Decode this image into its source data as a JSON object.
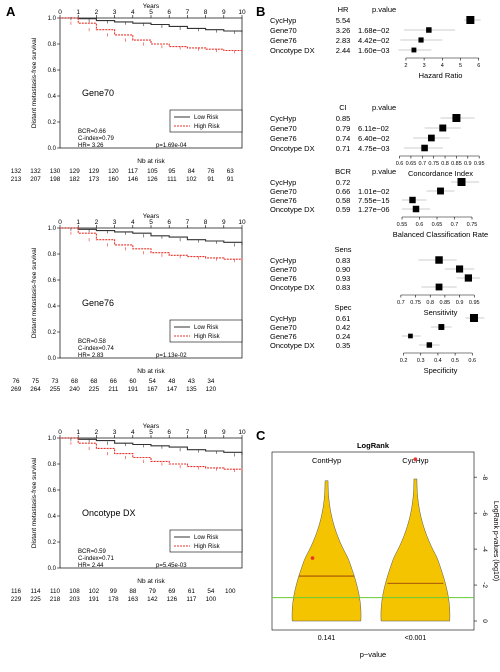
{
  "panel_labels": {
    "a": "A",
    "b": "B",
    "c": "C"
  },
  "km": {
    "years_label": "Years",
    "x_ticks": [
      "0",
      "1",
      "2",
      "3",
      "4",
      "5",
      "6",
      "7",
      "8",
      "9",
      "10"
    ],
    "ylabel": "Distant metastasis-free survival",
    "y_ticks": [
      "0.0",
      "0.2",
      "0.4",
      "0.6",
      "0.8",
      "1.0"
    ],
    "risk_title": "Nb at risk",
    "legend_low": "Low Risk",
    "legend_high": "High Risk",
    "colors": {
      "low": "#333333",
      "high": "#e8332b"
    }
  },
  "chart_data": [
    {
      "type": "line",
      "name": "Gene70",
      "x": [
        0,
        1,
        2,
        3,
        4,
        5,
        6,
        7,
        8,
        9,
        10
      ],
      "series": [
        {
          "name": "Low Risk",
          "values": [
            1.0,
            0.995,
            0.98,
            0.97,
            0.96,
            0.95,
            0.935,
            0.92,
            0.91,
            0.9,
            0.89
          ]
        },
        {
          "name": "High Risk",
          "values": [
            1.0,
            0.96,
            0.91,
            0.87,
            0.83,
            0.8,
            0.78,
            0.77,
            0.76,
            0.75,
            0.74
          ]
        }
      ],
      "risk_rows": [
        [
          "132",
          "132",
          "130",
          "129",
          "129",
          "120",
          "117",
          "105",
          "95",
          "84",
          "76",
          "63"
        ],
        [
          "213",
          "207",
          "198",
          "182",
          "173",
          "160",
          "146",
          "126",
          "111",
          "102",
          "91",
          "91"
        ]
      ],
      "stats": {
        "bcr": "BCR=0.66",
        "cindex": "C-index=0.79",
        "hr": "HR= 3.26",
        "p": "p=1.69e-04"
      },
      "ylim": [
        0,
        1
      ]
    },
    {
      "type": "line",
      "name": "Gene76",
      "x": [
        0,
        1,
        2,
        3,
        4,
        5,
        6,
        7,
        8,
        9,
        10
      ],
      "series": [
        {
          "name": "Low Risk",
          "values": [
            1.0,
            0.99,
            0.98,
            0.97,
            0.96,
            0.94,
            0.93,
            0.91,
            0.9,
            0.89,
            0.87
          ]
        },
        {
          "name": "High Risk",
          "values": [
            1.0,
            0.96,
            0.91,
            0.87,
            0.84,
            0.81,
            0.79,
            0.78,
            0.77,
            0.76,
            0.75
          ]
        }
      ],
      "risk_rows": [
        [
          "76",
          "75",
          "73",
          "68",
          "68",
          "66",
          "60",
          "54",
          "48",
          "43",
          "34",
          ""
        ],
        [
          "269",
          "264",
          "255",
          "240",
          "225",
          "211",
          "191",
          "167",
          "147",
          "135",
          "120",
          ""
        ]
      ],
      "stats": {
        "bcr": "BCR=0.58",
        "cindex": "C-index=0.74",
        "hr": "HR= 2.83",
        "p": "p=1.13e-02"
      },
      "ylim": [
        0,
        1
      ]
    },
    {
      "type": "line",
      "name": "Oncotype DX",
      "x": [
        0,
        1,
        2,
        3,
        4,
        5,
        6,
        7,
        8,
        9,
        10
      ],
      "series": [
        {
          "name": "Low Risk",
          "values": [
            1.0,
            0.99,
            0.98,
            0.96,
            0.95,
            0.94,
            0.93,
            0.91,
            0.9,
            0.89,
            0.87
          ]
        },
        {
          "name": "High Risk",
          "values": [
            1.0,
            0.96,
            0.92,
            0.88,
            0.85,
            0.82,
            0.8,
            0.78,
            0.77,
            0.76,
            0.75
          ]
        }
      ],
      "risk_rows": [
        [
          "116",
          "114",
          "110",
          "108",
          "102",
          "99",
          "88",
          "79",
          "69",
          "61",
          "54",
          "100"
        ],
        [
          "229",
          "225",
          "218",
          "203",
          "191",
          "178",
          "163",
          "142",
          "126",
          "117",
          "100",
          ""
        ]
      ],
      "stats": {
        "bcr": "BCR=0.59",
        "cindex": "C-index=0.71",
        "hr": "HR= 2.44",
        "p": "p=5.45e-03"
      },
      "ylim": [
        0,
        1
      ]
    },
    {
      "type": "scatter",
      "name": "Hazard Ratio",
      "value_header": "HR",
      "p_header": "p.value",
      "xlabel": "Hazard Ratio",
      "x_ticks": [
        2,
        3,
        4,
        5,
        6
      ],
      "xlim": [
        1.4,
        6.4
      ],
      "rows": [
        {
          "label": "CycHyp",
          "value": 5.54,
          "value_text": "5.54",
          "p": "",
          "lo": 5.2,
          "hi": 6.1
        },
        {
          "label": "Gene70",
          "value": 3.26,
          "value_text": "3.26",
          "p": "1.68e−02",
          "lo": 1.9,
          "hi": 4.7
        },
        {
          "label": "Gene76",
          "value": 2.83,
          "value_text": "2.83",
          "p": "4.42e−02",
          "lo": 1.7,
          "hi": 4.0
        },
        {
          "label": "Oncotype DX",
          "value": 2.44,
          "value_text": "2.44",
          "p": "1.60e−03",
          "lo": 1.6,
          "hi": 3.4
        }
      ]
    },
    {
      "type": "scatter",
      "name": "Concordance Index",
      "value_header": "CI",
      "p_header": "p.value",
      "xlabel": "Concordance Index",
      "x_ticks": [
        0.6,
        0.65,
        0.7,
        0.75,
        0.8,
        0.85,
        0.9,
        0.95
      ],
      "xlim": [
        0.58,
        0.98
      ],
      "rows": [
        {
          "label": "CycHyp",
          "value": 0.85,
          "value_text": "0.85",
          "p": "",
          "lo": 0.78,
          "hi": 0.93
        },
        {
          "label": "Gene70",
          "value": 0.79,
          "value_text": "0.79",
          "p": "6.11e−02",
          "lo": 0.71,
          "hi": 0.87
        },
        {
          "label": "Gene76",
          "value": 0.74,
          "value_text": "0.74",
          "p": "6.40e−02",
          "lo": 0.66,
          "hi": 0.82
        },
        {
          "label": "Oncotype DX",
          "value": 0.71,
          "value_text": "0.71",
          "p": "4.75e−03",
          "lo": 0.62,
          "hi": 0.79
        }
      ]
    },
    {
      "type": "scatter",
      "name": "Balanced Classification Rate",
      "value_header": "BCR",
      "p_header": "p.value",
      "xlabel": "Balanced Classification Rate",
      "x_ticks": [
        0.55,
        0.6,
        0.65,
        0.7,
        0.75
      ],
      "xlim": [
        0.53,
        0.79
      ],
      "rows": [
        {
          "label": "CycHyp",
          "value": 0.72,
          "value_text": "0.72",
          "p": "",
          "lo": 0.69,
          "hi": 0.77
        },
        {
          "label": "Gene70",
          "value": 0.66,
          "value_text": "0.66",
          "p": "1.01e−02",
          "lo": 0.62,
          "hi": 0.7
        },
        {
          "label": "Gene76",
          "value": 0.58,
          "value_text": "0.58",
          "p": "7.55e−15",
          "lo": 0.55,
          "hi": 0.62
        },
        {
          "label": "Oncotype DX",
          "value": 0.59,
          "value_text": "0.59",
          "p": "1.27e−06",
          "lo": 0.55,
          "hi": 0.63
        }
      ]
    },
    {
      "type": "scatter",
      "name": "Sensitivity",
      "value_header": "Sens",
      "p_header": "",
      "xlabel": "Sensitivity",
      "x_ticks": [
        0.7,
        0.75,
        0.8,
        0.85,
        0.9,
        0.95
      ],
      "xlim": [
        0.68,
        0.99
      ],
      "rows": [
        {
          "label": "CycHyp",
          "value": 0.83,
          "value_text": "0.83",
          "p": "",
          "lo": 0.76,
          "hi": 0.89
        },
        {
          "label": "Gene70",
          "value": 0.9,
          "value_text": "0.90",
          "p": "",
          "lo": 0.85,
          "hi": 0.95
        },
        {
          "label": "Gene76",
          "value": 0.93,
          "value_text": "0.93",
          "p": "",
          "lo": 0.89,
          "hi": 0.97
        },
        {
          "label": "Oncotype DX",
          "value": 0.83,
          "value_text": "0.83",
          "p": "",
          "lo": 0.77,
          "hi": 0.89
        }
      ]
    },
    {
      "type": "scatter",
      "name": "Specificity",
      "value_header": "Spec",
      "p_header": "",
      "xlabel": "Specificity",
      "x_ticks": [
        0.2,
        0.3,
        0.4,
        0.5,
        0.6
      ],
      "xlim": [
        0.15,
        0.68
      ],
      "rows": [
        {
          "label": "CycHyp",
          "value": 0.61,
          "value_text": "0.61",
          "p": "",
          "lo": 0.56,
          "hi": 0.67
        },
        {
          "label": "Gene70",
          "value": 0.42,
          "value_text": "0.42",
          "p": "",
          "lo": 0.36,
          "hi": 0.48
        },
        {
          "label": "Gene76",
          "value": 0.24,
          "value_text": "0.24",
          "p": "",
          "lo": 0.19,
          "hi": 0.3
        },
        {
          "label": "Oncotype DX",
          "value": 0.35,
          "value_text": "0.35",
          "p": "",
          "lo": 0.29,
          "hi": 0.41
        }
      ]
    },
    {
      "type": "violin",
      "title": "LogRank",
      "categories": [
        "ContHyp",
        "CycHyp"
      ],
      "bottom_labels": [
        "0.141",
        "<0.001"
      ],
      "xlabel": "p−value",
      "ylabel": "LogRank p-values (log10)",
      "y_ticks": [
        0,
        -2,
        -4,
        -6,
        -8
      ],
      "ylim": [
        0.5,
        -9.4
      ],
      "medians": [
        -2.5,
        -2.1
      ],
      "highlight_points": [
        -3.5,
        -9.0
      ],
      "threshold": -1.3,
      "colors": {
        "fill": "#f5c400",
        "point": "#e8332b",
        "median": "#8b2e0e",
        "threshold": "#66cc33"
      }
    }
  ]
}
